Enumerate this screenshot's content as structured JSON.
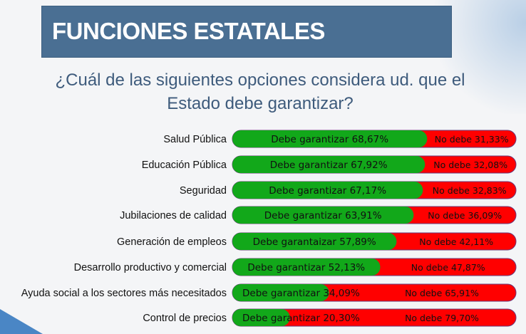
{
  "header": {
    "title": "FUNCIONES ESTATALES"
  },
  "chart_data": {
    "type": "bar",
    "stacked": true,
    "orientation": "horizontal",
    "title": "¿Cuál de las siguientes opciones considera ud. que el Estado debe garantizar?",
    "categories": [
      "Salud Pública",
      "Educación Pública",
      "Seguridad",
      "Jubilaciones de calidad",
      "Generación de empleos",
      "Desarrollo productivo y comercial",
      "Ayuda social a los sectores más necesitados",
      "Control de precios"
    ],
    "series": [
      {
        "name": "Debe garantizar",
        "color": "#12a81a",
        "values": [
          68.67,
          67.92,
          67.17,
          63.91,
          57.89,
          52.13,
          34.09,
          20.3
        ],
        "labels": [
          "Debe garantizar 68,67%",
          "Debe garantizar 67,92%",
          "Debe garantizar 67,17%",
          "Debe garantizar 63,91%",
          "Debe garantaizar 57,89%",
          "Debe garantizar 52,13%",
          "Debe garantizar 34,09%",
          "Debe garantizar 20,30%"
        ]
      },
      {
        "name": "No debe",
        "color": "#ff0000",
        "values": [
          31.33,
          32.08,
          32.83,
          36.09,
          42.11,
          47.87,
          65.91,
          79.7
        ],
        "labels": [
          "No debe 31,33%",
          "No debe 32,08%",
          "No debe 32,83%",
          "No debe 36,09%",
          "No debe 42,11%",
          "No debe 47,87%",
          "No debe 65,91%",
          "No debe 79,70%"
        ]
      }
    ],
    "xlim": [
      0,
      100
    ]
  }
}
